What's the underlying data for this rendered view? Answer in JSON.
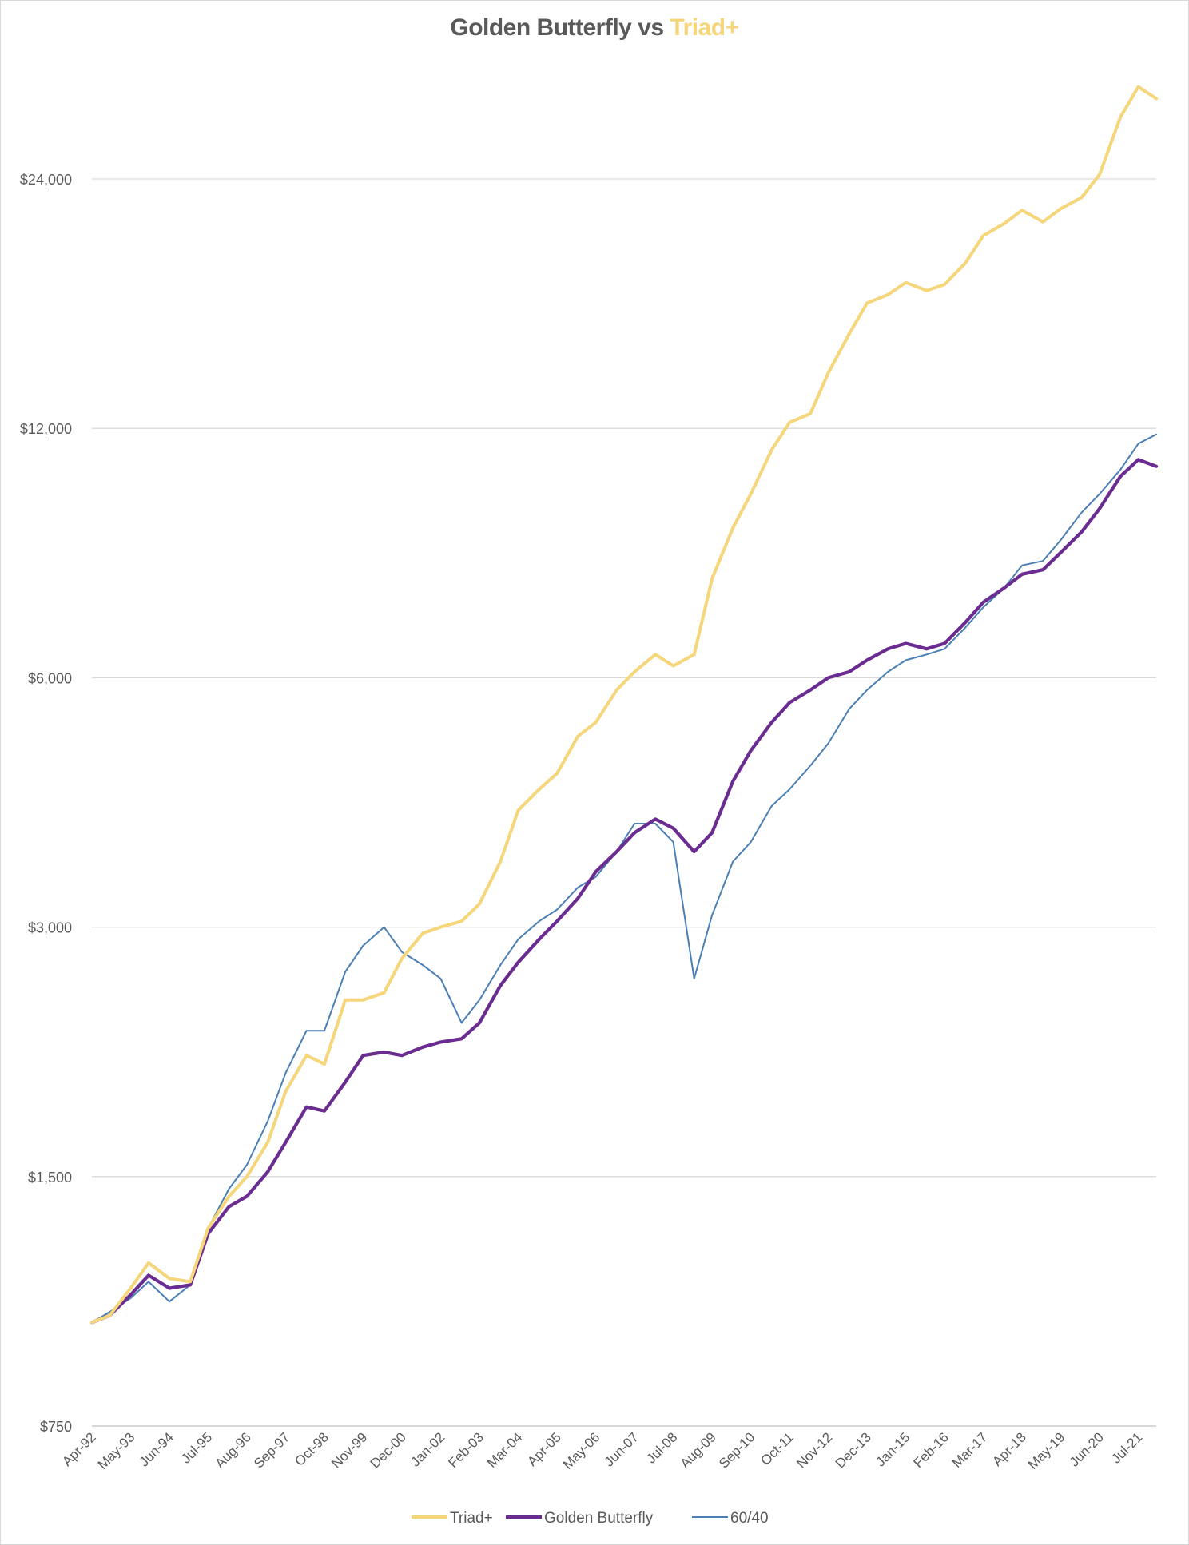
{
  "chart_data": {
    "type": "line",
    "title": "Golden Butterfly vs",
    "title_accent": "Triad+",
    "xlabel": "",
    "ylabel": "",
    "y_scale": "log",
    "ylim": [
      750,
      32000
    ],
    "y_ticks": [
      750,
      1500,
      3000,
      6000,
      12000,
      24000
    ],
    "y_tick_labels": [
      "$750",
      "$1,500",
      "$3,000",
      "$6,000",
      "$12,000",
      "$24,000"
    ],
    "x_ticks": [
      "Apr-92",
      "May-93",
      "Jun-94",
      "Jul-95",
      "Aug-96",
      "Sep-97",
      "Oct-98",
      "Nov-99",
      "Dec-00",
      "Jan-02",
      "Feb-03",
      "Mar-04",
      "Apr-05",
      "May-06",
      "Jun-07",
      "Jul-08",
      "Aug-09",
      "Sep-10",
      "Oct-11",
      "Nov-12",
      "Dec-13",
      "Jan-15",
      "Feb-16",
      "Mar-17",
      "Apr-18",
      "May-19",
      "Jun-20",
      "Jul-21"
    ],
    "grid": true,
    "legend_position": "bottom",
    "series": [
      {
        "name": "Triad+",
        "color": "#f5d67a",
        "points": [
          [
            "Apr-92",
            1000
          ],
          [
            "Oct-92",
            1020
          ],
          [
            "May-93",
            1100
          ],
          [
            "Nov-93",
            1180
          ],
          [
            "Jun-94",
            1130
          ],
          [
            "Jan-95",
            1120
          ],
          [
            "Jul-95",
            1300
          ],
          [
            "Feb-96",
            1420
          ],
          [
            "Aug-96",
            1500
          ],
          [
            "Mar-97",
            1650
          ],
          [
            "Sep-97",
            1900
          ],
          [
            "Apr-98",
            2100
          ],
          [
            "Oct-98",
            2050
          ],
          [
            "May-99",
            2450
          ],
          [
            "Nov-99",
            2450
          ],
          [
            "Jun-00",
            2500
          ],
          [
            "Dec-00",
            2750
          ],
          [
            "Jul-01",
            2950
          ],
          [
            "Jan-02",
            3000
          ],
          [
            "Aug-02",
            3050
          ],
          [
            "Feb-03",
            3200
          ],
          [
            "Sep-03",
            3600
          ],
          [
            "Mar-04",
            4150
          ],
          [
            "Oct-04",
            4400
          ],
          [
            "Apr-05",
            4600
          ],
          [
            "Nov-05",
            5100
          ],
          [
            "May-06",
            5300
          ],
          [
            "Dec-06",
            5800
          ],
          [
            "Jun-07",
            6100
          ],
          [
            "Jan-08",
            6400
          ],
          [
            "Jul-08",
            6200
          ],
          [
            "Feb-09",
            6400
          ],
          [
            "Aug-09",
            7900
          ],
          [
            "Mar-10",
            9100
          ],
          [
            "Sep-10",
            10000
          ],
          [
            "Apr-11",
            11300
          ],
          [
            "Oct-11",
            12200
          ],
          [
            "May-12",
            12500
          ],
          [
            "Nov-12",
            14000
          ],
          [
            "Jun-13",
            15600
          ],
          [
            "Dec-13",
            17000
          ],
          [
            "Jul-14",
            17400
          ],
          [
            "Jan-15",
            18000
          ],
          [
            "Aug-15",
            17600
          ],
          [
            "Feb-16",
            17900
          ],
          [
            "Sep-16",
            19000
          ],
          [
            "Mar-17",
            20500
          ],
          [
            "Oct-17",
            21200
          ],
          [
            "Apr-18",
            22000
          ],
          [
            "Nov-18",
            21300
          ],
          [
            "May-19",
            22100
          ],
          [
            "Dec-19",
            22800
          ],
          [
            "Jun-20",
            24300
          ],
          [
            "Jan-21",
            28500
          ],
          [
            "Jul-21",
            31000
          ],
          [
            "Jan-22",
            30000
          ]
        ]
      },
      {
        "name": "Golden Butterfly",
        "color": "#6a2c91",
        "points": [
          [
            "Apr-92",
            1000
          ],
          [
            "Oct-92",
            1020
          ],
          [
            "May-93",
            1080
          ],
          [
            "Nov-93",
            1140
          ],
          [
            "Jun-94",
            1100
          ],
          [
            "Jan-95",
            1110
          ],
          [
            "Jul-95",
            1280
          ],
          [
            "Feb-96",
            1380
          ],
          [
            "Aug-96",
            1420
          ],
          [
            "Mar-97",
            1520
          ],
          [
            "Sep-97",
            1650
          ],
          [
            "Apr-98",
            1820
          ],
          [
            "Oct-98",
            1800
          ],
          [
            "May-99",
            1950
          ],
          [
            "Nov-99",
            2100
          ],
          [
            "Jun-00",
            2120
          ],
          [
            "Dec-00",
            2100
          ],
          [
            "Jul-01",
            2150
          ],
          [
            "Jan-02",
            2180
          ],
          [
            "Aug-02",
            2200
          ],
          [
            "Feb-03",
            2300
          ],
          [
            "Sep-03",
            2550
          ],
          [
            "Mar-04",
            2720
          ],
          [
            "Oct-04",
            2900
          ],
          [
            "Apr-05",
            3050
          ],
          [
            "Nov-05",
            3250
          ],
          [
            "May-06",
            3500
          ],
          [
            "Dec-06",
            3700
          ],
          [
            "Jun-07",
            3900
          ],
          [
            "Jan-08",
            4050
          ],
          [
            "Jul-08",
            3950
          ],
          [
            "Feb-09",
            3700
          ],
          [
            "Aug-09",
            3900
          ],
          [
            "Mar-10",
            4500
          ],
          [
            "Sep-10",
            4900
          ],
          [
            "Apr-11",
            5300
          ],
          [
            "Oct-11",
            5600
          ],
          [
            "May-12",
            5800
          ],
          [
            "Nov-12",
            6000
          ],
          [
            "Jun-13",
            6100
          ],
          [
            "Dec-13",
            6300
          ],
          [
            "Jul-14",
            6500
          ],
          [
            "Jan-15",
            6600
          ],
          [
            "Aug-15",
            6500
          ],
          [
            "Feb-16",
            6600
          ],
          [
            "Sep-16",
            7000
          ],
          [
            "Mar-17",
            7400
          ],
          [
            "Oct-17",
            7700
          ],
          [
            "Apr-18",
            8000
          ],
          [
            "Nov-18",
            8100
          ],
          [
            "May-19",
            8500
          ],
          [
            "Dec-19",
            9000
          ],
          [
            "Jun-20",
            9600
          ],
          [
            "Jan-21",
            10500
          ],
          [
            "Jul-21",
            11000
          ],
          [
            "Jan-22",
            10800
          ]
        ]
      },
      {
        "name": "60/40",
        "color": "#4a7fb5",
        "points": [
          [
            "Apr-92",
            1000
          ],
          [
            "Oct-92",
            1030
          ],
          [
            "May-93",
            1070
          ],
          [
            "Nov-93",
            1120
          ],
          [
            "Jun-94",
            1060
          ],
          [
            "Jan-95",
            1110
          ],
          [
            "Jul-95",
            1300
          ],
          [
            "Feb-96",
            1450
          ],
          [
            "Aug-96",
            1550
          ],
          [
            "Mar-97",
            1750
          ],
          [
            "Sep-97",
            2000
          ],
          [
            "Apr-98",
            2250
          ],
          [
            "Oct-98",
            2250
          ],
          [
            "May-99",
            2650
          ],
          [
            "Nov-99",
            2850
          ],
          [
            "Jun-00",
            3000
          ],
          [
            "Dec-00",
            2800
          ],
          [
            "Jul-01",
            2700
          ],
          [
            "Jan-02",
            2600
          ],
          [
            "Aug-02",
            2300
          ],
          [
            "Feb-03",
            2450
          ],
          [
            "Sep-03",
            2700
          ],
          [
            "Mar-04",
            2900
          ],
          [
            "Oct-04",
            3050
          ],
          [
            "Apr-05",
            3150
          ],
          [
            "Nov-05",
            3350
          ],
          [
            "May-06",
            3450
          ],
          [
            "Dec-06",
            3700
          ],
          [
            "Jun-07",
            4000
          ],
          [
            "Jan-08",
            4000
          ],
          [
            "Jul-08",
            3800
          ],
          [
            "Feb-09",
            2600
          ],
          [
            "Aug-09",
            3100
          ],
          [
            "Mar-10",
            3600
          ],
          [
            "Sep-10",
            3800
          ],
          [
            "Apr-11",
            4200
          ],
          [
            "Oct-11",
            4400
          ],
          [
            "May-12",
            4700
          ],
          [
            "Nov-12",
            5000
          ],
          [
            "Jun-13",
            5500
          ],
          [
            "Dec-13",
            5800
          ],
          [
            "Jul-14",
            6100
          ],
          [
            "Jan-15",
            6300
          ],
          [
            "Aug-15",
            6400
          ],
          [
            "Feb-16",
            6500
          ],
          [
            "Sep-16",
            6900
          ],
          [
            "Mar-17",
            7300
          ],
          [
            "Oct-17",
            7700
          ],
          [
            "Apr-18",
            8200
          ],
          [
            "Nov-18",
            8300
          ],
          [
            "May-19",
            8800
          ],
          [
            "Dec-19",
            9500
          ],
          [
            "Jun-20",
            10000
          ],
          [
            "Jan-21",
            10700
          ],
          [
            "Jul-21",
            11500
          ],
          [
            "Jan-22",
            11800
          ]
        ]
      }
    ]
  }
}
